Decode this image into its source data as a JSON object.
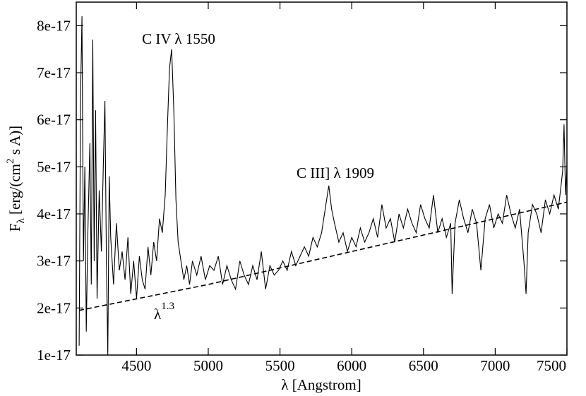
{
  "chart_data": {
    "type": "line",
    "x_label": "λ [Angstrom]",
    "y_label": {
      "base": "F",
      "sub": "λ",
      "pre": " [erg/(cm",
      "sup": "2",
      "post": " s A)]"
    },
    "annotations": [
      {
        "text": "C IV λ 1550"
      },
      {
        "text": "C III] λ 1909"
      },
      {
        "base": "λ",
        "sup": "1.3"
      }
    ],
    "xlim": [
      4080,
      7500
    ],
    "ylim": [
      1e-17,
      8.5e-17
    ],
    "xticks": [
      4500,
      5000,
      5500,
      6000,
      6500,
      7000,
      7500
    ],
    "yticks": [
      1e-17,
      2e-17,
      3e-17,
      4e-17,
      5e-17,
      6e-17,
      7e-17,
      8e-17
    ],
    "series": [
      {
        "color": "#000000",
        "style": "solid",
        "x": [
          4100,
          4110,
          4120,
          4130,
          4140,
          4150,
          4160,
          4175,
          4185,
          4195,
          4205,
          4215,
          4225,
          4240,
          4255,
          4270,
          4280,
          4290,
          4300,
          4310,
          4320,
          4340,
          4360,
          4380,
          4400,
          4420,
          4440,
          4460,
          4480,
          4500,
          4520,
          4540,
          4560,
          4580,
          4600,
          4620,
          4640,
          4660,
          4680,
          4700,
          4715,
          4730,
          4745,
          4760,
          4775,
          4790,
          4810,
          4830,
          4850,
          4870,
          4890,
          4920,
          4950,
          4980,
          5010,
          5040,
          5070,
          5100,
          5130,
          5160,
          5190,
          5220,
          5250,
          5280,
          5310,
          5340,
          5370,
          5400,
          5430,
          5460,
          5490,
          5520,
          5550,
          5580,
          5610,
          5640,
          5670,
          5700,
          5730,
          5760,
          5790,
          5820,
          5840,
          5860,
          5880,
          5910,
          5940,
          5970,
          6000,
          6030,
          6060,
          6090,
          6120,
          6150,
          6180,
          6210,
          6240,
          6270,
          6300,
          6330,
          6360,
          6390,
          6420,
          6450,
          6480,
          6510,
          6540,
          6570,
          6600,
          6630,
          6660,
          6690,
          6700,
          6720,
          6750,
          6780,
          6810,
          6840,
          6870,
          6900,
          6930,
          6960,
          6990,
          7020,
          7050,
          7080,
          7110,
          7140,
          7170,
          7200,
          7215,
          7230,
          7260,
          7290,
          7320,
          7350,
          7380,
          7410,
          7440,
          7470,
          7480,
          7490,
          7500
        ],
        "values": [
          1.2e-17,
          6.5e-17,
          8.2e-17,
          3e-17,
          5e-17,
          1.5e-17,
          3.5e-17,
          5.5e-17,
          2.5e-17,
          7.7e-17,
          3e-17,
          6.2e-17,
          2.2e-17,
          4.5e-17,
          3.2e-17,
          5.2e-17,
          6.4e-17,
          3e-17,
          1e-17,
          4.8e-17,
          3.5e-17,
          2.5e-17,
          3.8e-17,
          2.8e-17,
          3.2e-17,
          2.6e-17,
          3.5e-17,
          2.3e-17,
          3e-17,
          2.2e-17,
          3.1e-17,
          2.6e-17,
          2.4e-17,
          3.3e-17,
          2.7e-17,
          3.4e-17,
          3e-17,
          3.9e-17,
          3.6e-17,
          4.4e-17,
          5.8e-17,
          7.1e-17,
          7.5e-17,
          6.2e-17,
          4.3e-17,
          3.4e-17,
          3e-17,
          2.6e-17,
          2.9e-17,
          2.5e-17,
          3e-17,
          2.7e-17,
          3.1e-17,
          2.6e-17,
          2.9e-17,
          2.8e-17,
          3.1e-17,
          2.5e-17,
          2.9e-17,
          2.6e-17,
          2.4e-17,
          3e-17,
          2.7e-17,
          2.5e-17,
          2.9e-17,
          2.6e-17,
          3.2e-17,
          2.4e-17,
          2.9e-17,
          2.7e-17,
          2.8e-17,
          3e-17,
          2.8e-17,
          3.2e-17,
          2.9e-17,
          3.1e-17,
          3.3e-17,
          3.1e-17,
          3.5e-17,
          3.3e-17,
          3.6e-17,
          4.2e-17,
          4.6e-17,
          4.1e-17,
          3.8e-17,
          3.4e-17,
          3.6e-17,
          3.2e-17,
          3.5e-17,
          3.3e-17,
          3.7e-17,
          3.4e-17,
          3.6e-17,
          3.9e-17,
          3.5e-17,
          4.2e-17,
          3.7e-17,
          3.9e-17,
          3.4e-17,
          4e-17,
          3.7e-17,
          4.1e-17,
          3.8e-17,
          3.6e-17,
          4.2e-17,
          3.9e-17,
          3.7e-17,
          4.4e-17,
          3.6e-17,
          3.9e-17,
          3.5e-17,
          3.8e-17,
          2.3e-17,
          3.8e-17,
          4.3e-17,
          3.9e-17,
          3.6e-17,
          4.1e-17,
          3.8e-17,
          2.8e-17,
          3.9e-17,
          4.2e-17,
          3.7e-17,
          4e-17,
          3.8e-17,
          4.4e-17,
          4e-17,
          3.7e-17,
          4.1e-17,
          3e-17,
          2.3e-17,
          3.6e-17,
          4.2e-17,
          4e-17,
          3.6e-17,
          4.3e-17,
          4e-17,
          4.4e-17,
          4.1e-17,
          4.9e-17,
          5.9e-17,
          4.4e-17,
          5e-17
        ]
      },
      {
        "color": "#000000",
        "style": "dashed",
        "x": [
          4100,
          5000,
          6000,
          7000,
          7500
        ],
        "values": [
          1.95e-17,
          2.5e-17,
          3.2e-17,
          3.9e-17,
          4.25e-17
        ]
      }
    ]
  }
}
